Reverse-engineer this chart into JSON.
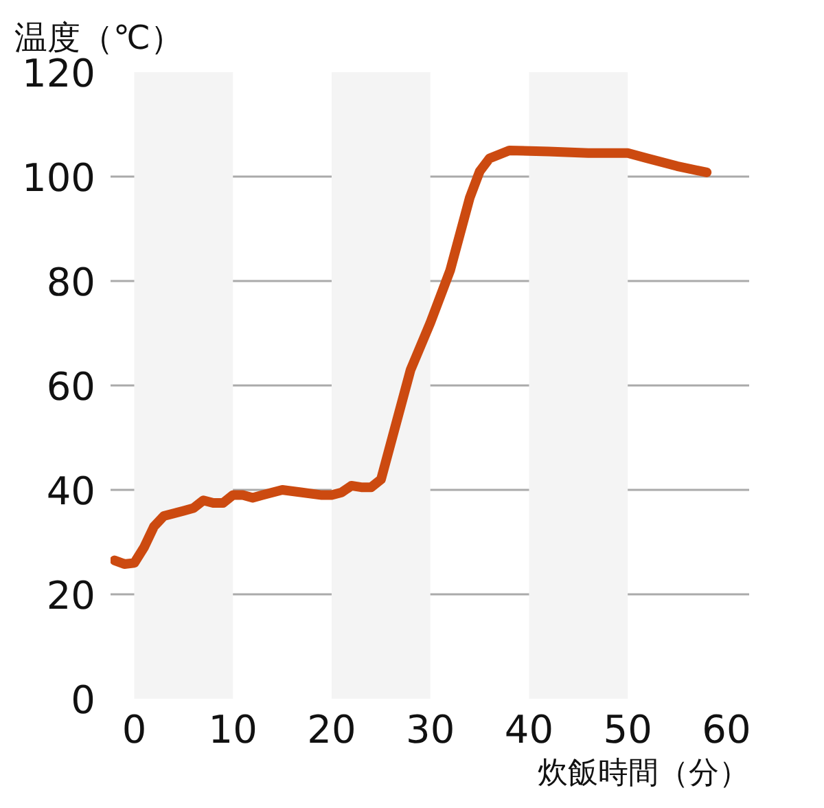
{
  "chart_data": {
    "type": "line",
    "ylabel": "温度（℃）",
    "xlabel": "炊飯時間（分）",
    "x": [
      -2,
      -1,
      0,
      1,
      2,
      3,
      5,
      6,
      7,
      8,
      9,
      10,
      11,
      12,
      13,
      15,
      17,
      19,
      20,
      21,
      22,
      23,
      24,
      25,
      26,
      27,
      28,
      30,
      32,
      33,
      34,
      35,
      36,
      38,
      42,
      46,
      50,
      52,
      55,
      58
    ],
    "series": [
      {
        "color": "#cc4a10",
        "values": [
          26.5,
          25.8,
          26,
          29,
          33,
          35,
          36,
          36.5,
          38,
          37.5,
          37.5,
          39,
          39,
          38.5,
          39,
          40,
          39.5,
          39,
          39,
          39.5,
          40.8,
          40.5,
          40.5,
          42,
          49,
          56,
          63,
          72,
          82,
          89,
          96,
          101,
          103.5,
          105,
          104.8,
          104.5,
          104.5,
          103.5,
          102,
          100.8
        ]
      }
    ],
    "xlim": [
      -2.4,
      62.3
    ],
    "ylim": [
      0,
      120
    ],
    "xticks": [
      0,
      10,
      20,
      30,
      40,
      50,
      60
    ],
    "yticks": [
      0,
      20,
      40,
      60,
      80,
      100,
      120
    ],
    "grid": "y",
    "marker": "none",
    "line_style": "solid",
    "bands": [
      {
        "axis": "x",
        "from": 0,
        "to": 10,
        "color": "#f4f4f4"
      },
      {
        "axis": "x",
        "from": 20,
        "to": 30,
        "color": "#f4f4f4"
      },
      {
        "axis": "x",
        "from": 40,
        "to": 50,
        "color": "#f4f4f4"
      }
    ]
  }
}
